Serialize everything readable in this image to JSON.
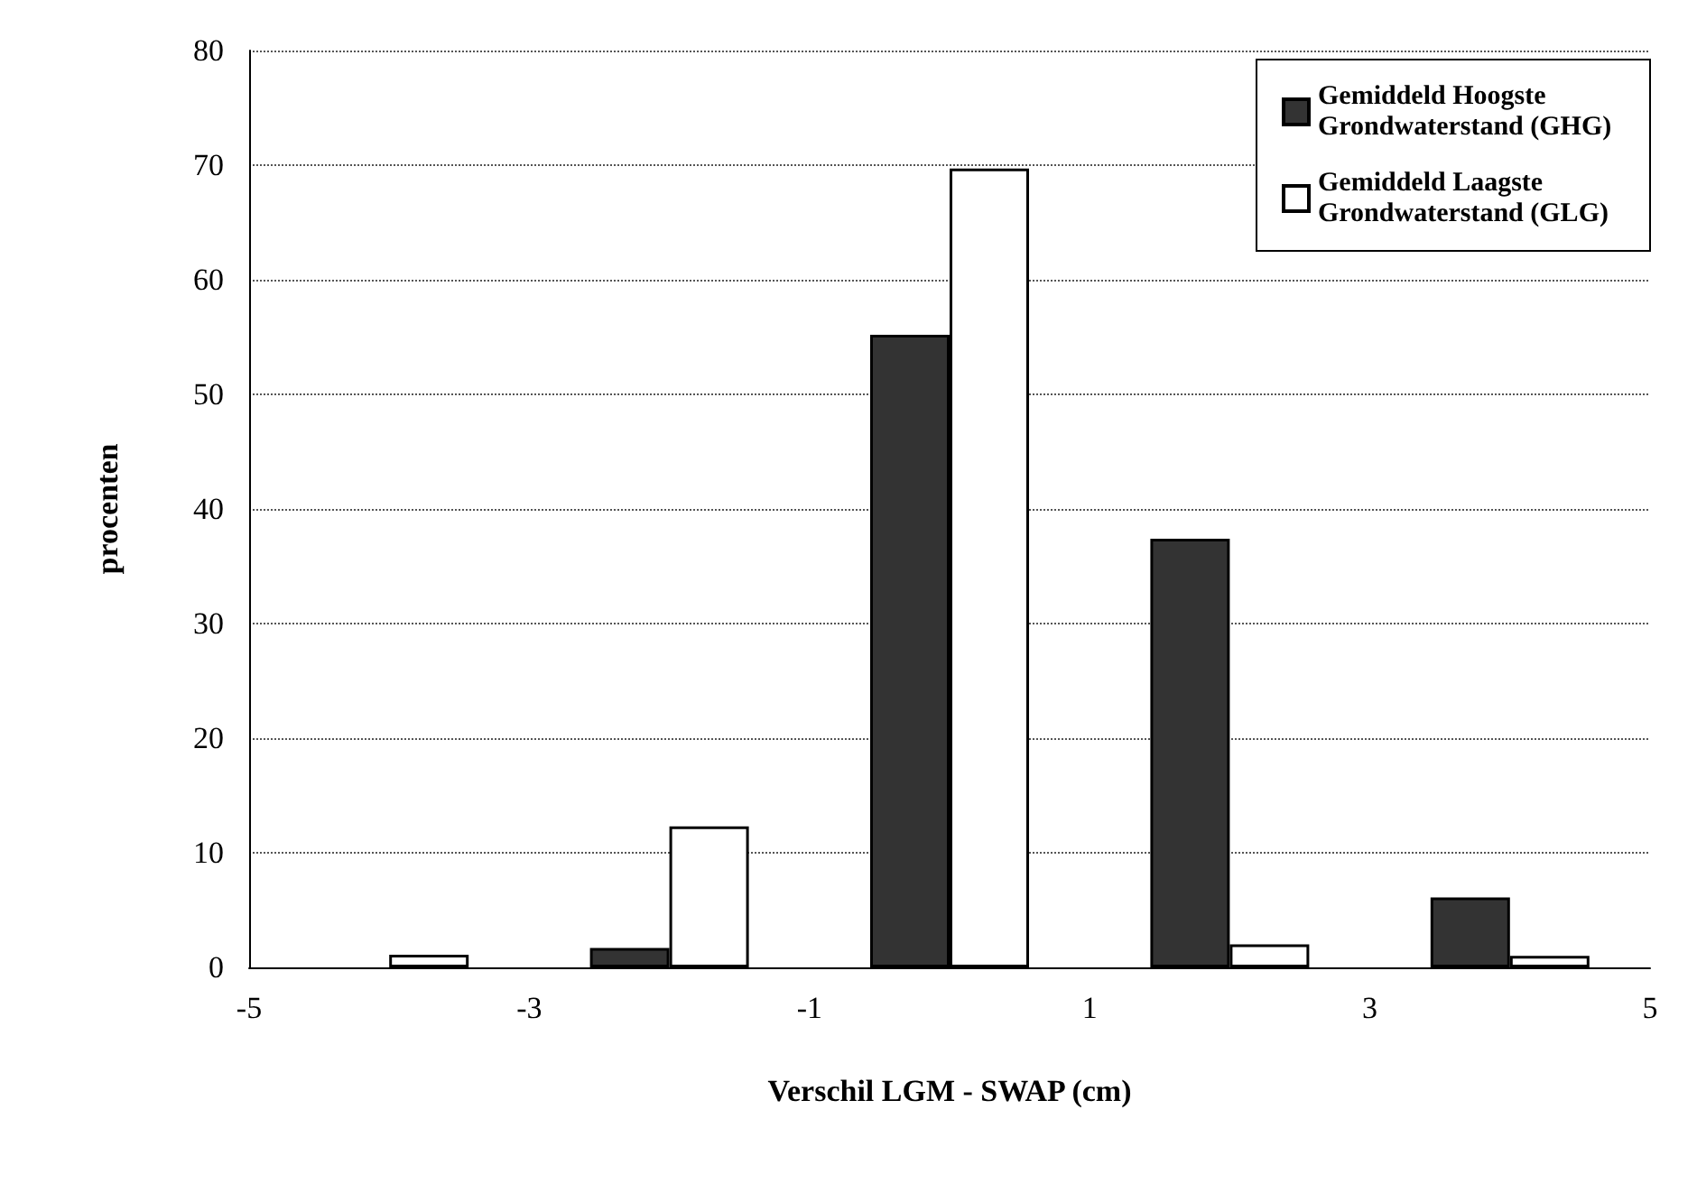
{
  "chart_data": {
    "type": "bar",
    "xlabel": "Verschil LGM - SWAP (cm)",
    "ylabel": "procenten",
    "x": [
      -4,
      -2,
      0,
      2,
      4
    ],
    "series": [
      {
        "name": "Gemiddeld Hoogste Grondwaterstand (GHG)",
        "color": "#333333",
        "values": [
          null,
          1.7,
          55.2,
          37.4,
          6.1
        ]
      },
      {
        "name": "Gemiddeld Laagste Grondwaterstand (GLG)",
        "color": "#ffffff",
        "values": [
          1.1,
          12.3,
          69.7,
          2.0,
          1.0
        ]
      }
    ],
    "xlim": [
      -5,
      5
    ],
    "xticks": [
      -5,
      -3,
      -1,
      1,
      3,
      5
    ],
    "ylim": [
      0,
      80
    ],
    "yticks": [
      0,
      10,
      20,
      30,
      40,
      50,
      60,
      70,
      80
    ],
    "grid": "y",
    "legend": "top right"
  }
}
